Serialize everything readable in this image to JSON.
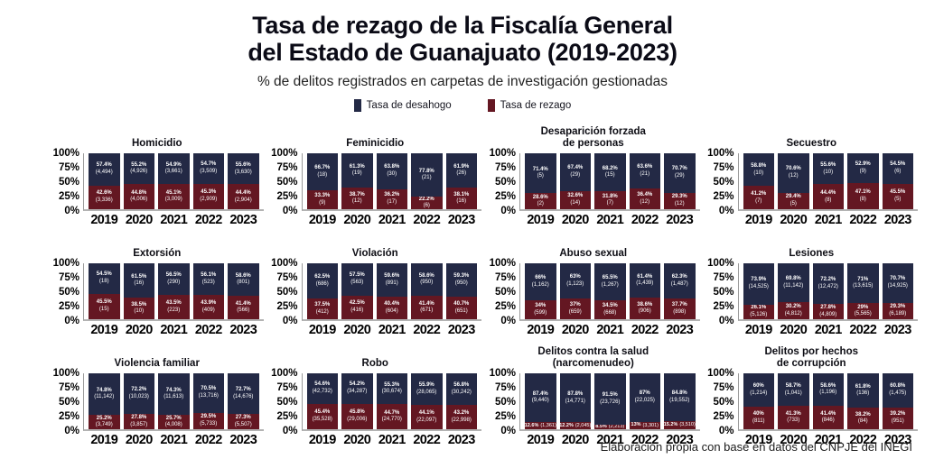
{
  "header": {
    "title_line1": "Tasa de rezago de la Fiscalía General",
    "title_line2": "del Estado de Guanajuato (2019-2023)",
    "subtitle": "% de delitos registrados en carpetas de investigación gestionadas"
  },
  "footer": "Elaboración propia con base en datos del CNPJE del INEGI",
  "chart_data": {
    "type": "bar",
    "stacked": true,
    "percent_stacked": true,
    "legend_position": "top",
    "categories": [
      "2019",
      "2020",
      "2021",
      "2022",
      "2023"
    ],
    "ylim": [
      0,
      100
    ],
    "yticks": [
      "100%",
      "75%",
      "50%",
      "25%",
      "0%"
    ],
    "series": [
      {
        "key": "desahogo",
        "name": "Tasa de desahogo",
        "color": "#232945"
      },
      {
        "key": "rezago",
        "name": "Tasa de rezago",
        "color": "#641722"
      }
    ],
    "subplots": [
      {
        "id": "homicidio",
        "title": [
          "Homicidio"
        ],
        "desahogo": {
          "pct": [
            "57.4%",
            "55.2%",
            "54.9%",
            "54.7%",
            "55.6%"
          ],
          "counts": [
            "(4,494)",
            "(4,926)",
            "(3,661)",
            "(3,509)",
            "(3,630)"
          ]
        },
        "rezago": {
          "pct": [
            "42.6%",
            "44.8%",
            "45.1%",
            "45.3%",
            "44.4%"
          ],
          "counts": [
            "(3,336)",
            "(4,006)",
            "(3,009)",
            "(2,909)",
            "(2,904)"
          ]
        }
      },
      {
        "id": "feminicidio",
        "title": [
          "Feminicidio"
        ],
        "desahogo": {
          "pct": [
            "66.7%",
            "61.3%",
            "63.8%",
            "77.8%",
            "61.9%"
          ],
          "counts": [
            "(18)",
            "(19)",
            "(30)",
            "(21)",
            "(26)"
          ]
        },
        "rezago": {
          "pct": [
            "33.3%",
            "38.7%",
            "36.2%",
            "22.2%",
            "38.1%"
          ],
          "counts": [
            "(9)",
            "(12)",
            "(17)",
            "(6)",
            "(16)"
          ]
        }
      },
      {
        "id": "desaparicion-forzada",
        "title": [
          "Desaparición forzada",
          "de personas"
        ],
        "desahogo": {
          "pct": [
            "71.4%",
            "67.4%",
            "68.2%",
            "63.6%",
            "70.7%"
          ],
          "counts": [
            "(5)",
            "(29)",
            "(15)",
            "(21)",
            "(29)"
          ]
        },
        "rezago": {
          "pct": [
            "28.6%",
            "32.6%",
            "31.8%",
            "36.4%",
            "29.3%"
          ],
          "counts": [
            "(2)",
            "(14)",
            "(7)",
            "(12)",
            "(12)"
          ]
        }
      },
      {
        "id": "secuestro",
        "title": [
          "Secuestro"
        ],
        "desahogo": {
          "pct": [
            "58.8%",
            "70.6%",
            "55.6%",
            "52.9%",
            "54.5%"
          ],
          "counts": [
            "(10)",
            "(12)",
            "(10)",
            "(9)",
            "(6)"
          ]
        },
        "rezago": {
          "pct": [
            "41.2%",
            "29.4%",
            "44.4%",
            "47.1%",
            "45.5%"
          ],
          "counts": [
            "(7)",
            "(5)",
            "(8)",
            "(8)",
            "(5)"
          ]
        }
      },
      {
        "id": "extorsion",
        "title": [
          "Extorsión"
        ],
        "desahogo": {
          "pct": [
            "54.5%",
            "61.5%",
            "56.5%",
            "56.1%",
            "58.6%"
          ],
          "counts": [
            "(18)",
            "(16)",
            "(290)",
            "(523)",
            "(801)"
          ]
        },
        "rezago": {
          "pct": [
            "45.5%",
            "38.5%",
            "43.5%",
            "43.9%",
            "41.4%"
          ],
          "counts": [
            "(15)",
            "(10)",
            "(223)",
            "(409)",
            "(566)"
          ]
        }
      },
      {
        "id": "violacion",
        "title": [
          "Violación"
        ],
        "desahogo": {
          "pct": [
            "62.5%",
            "57.5%",
            "59.6%",
            "58.6%",
            "59.3%"
          ],
          "counts": [
            "(686)",
            "(563)",
            "(891)",
            "(950)",
            "(950)"
          ]
        },
        "rezago": {
          "pct": [
            "37.5%",
            "42.5%",
            "40.4%",
            "41.4%",
            "40.7%"
          ],
          "counts": [
            "(412)",
            "(416)",
            "(604)",
            "(671)",
            "(651)"
          ]
        }
      },
      {
        "id": "abuso-sexual",
        "title": [
          "Abuso sexual"
        ],
        "desahogo": {
          "pct": [
            "66%",
            "63%",
            "65.5%",
            "61.4%",
            "62.3%"
          ],
          "counts": [
            "(1,162)",
            "(1,123)",
            "(1,267)",
            "(1,439)",
            "(1,487)"
          ]
        },
        "rezago": {
          "pct": [
            "34%",
            "37%",
            "34.5%",
            "38.6%",
            "37.7%"
          ],
          "counts": [
            "(599)",
            "(659)",
            "(668)",
            "(906)",
            "(898)"
          ]
        }
      },
      {
        "id": "lesiones",
        "title": [
          "Lesiones"
        ],
        "desahogo": {
          "pct": [
            "73.9%",
            "69.8%",
            "72.2%",
            "71%",
            "70.7%"
          ],
          "counts": [
            "(14,525)",
            "(11,142)",
            "(12,472)",
            "(13,615)",
            "(14,925)"
          ]
        },
        "rezago": {
          "pct": [
            "26.1%",
            "30.2%",
            "27.8%",
            "29%",
            "29.3%"
          ],
          "counts": [
            "(5,126)",
            "(4,812)",
            "(4,809)",
            "(5,565)",
            "(6,189)"
          ]
        }
      },
      {
        "id": "violencia-familiar",
        "title": [
          "Violencia familiar"
        ],
        "desahogo": {
          "pct": [
            "74.8%",
            "72.2%",
            "74.3%",
            "70.5%",
            "72.7%"
          ],
          "counts": [
            "(11,142)",
            "(10,023)",
            "(11,613)",
            "(13,716)",
            "(14,676)"
          ]
        },
        "rezago": {
          "pct": [
            "25.2%",
            "27.8%",
            "25.7%",
            "29.5%",
            "27.3%"
          ],
          "counts": [
            "(3,749)",
            "(3,857)",
            "(4,008)",
            "(5,733)",
            "(5,507)"
          ]
        }
      },
      {
        "id": "robo",
        "title": [
          "Robo"
        ],
        "desahogo": {
          "pct": [
            "54.6%",
            "54.2%",
            "55.3%",
            "55.9%",
            "56.8%"
          ],
          "counts": [
            "(42,732)",
            "(34,287)",
            "(30,674)",
            "(28,065)",
            "(30,242)"
          ]
        },
        "rezago": {
          "pct": [
            "45.4%",
            "45.8%",
            "44.7%",
            "44.1%",
            "43.2%"
          ],
          "counts": [
            "(35,528)",
            "(29,006)",
            "(24,770)",
            "(22,097)",
            "(22,998)"
          ]
        }
      },
      {
        "id": "narcomenudeo",
        "title": [
          "Delitos contra la salud",
          "(narcomenudeo)"
        ],
        "desahogo": {
          "pct": [
            "87.4%",
            "87.8%",
            "91.5%",
            "87%",
            "84.8%"
          ],
          "counts": [
            "(9,440)",
            "(14,771)",
            "(23,726)",
            "(22,025)",
            "(19,552)"
          ]
        },
        "rezago": {
          "pct": [
            "12.6%",
            "12.2%",
            "8.5%",
            "13%",
            "15.2%"
          ],
          "counts": [
            "(1,361)",
            "(2,045)",
            "(2,213)",
            "(3,301)",
            "(3,510)"
          ]
        }
      },
      {
        "id": "corrupcion",
        "title": [
          "Delitos por hechos",
          "de corrupción"
        ],
        "desahogo": {
          "pct": [
            "60%",
            "58.7%",
            "58.6%",
            "61.8%",
            "60.8%"
          ],
          "counts": [
            "(1,214)",
            "(1,041)",
            "(1,196)",
            "(136)",
            "(1,475)"
          ]
        },
        "rezago": {
          "pct": [
            "40%",
            "41.3%",
            "41.4%",
            "38.2%",
            "39.2%"
          ],
          "counts": [
            "(811)",
            "(733)",
            "(846)",
            "(84)",
            "(951)"
          ]
        }
      }
    ]
  }
}
